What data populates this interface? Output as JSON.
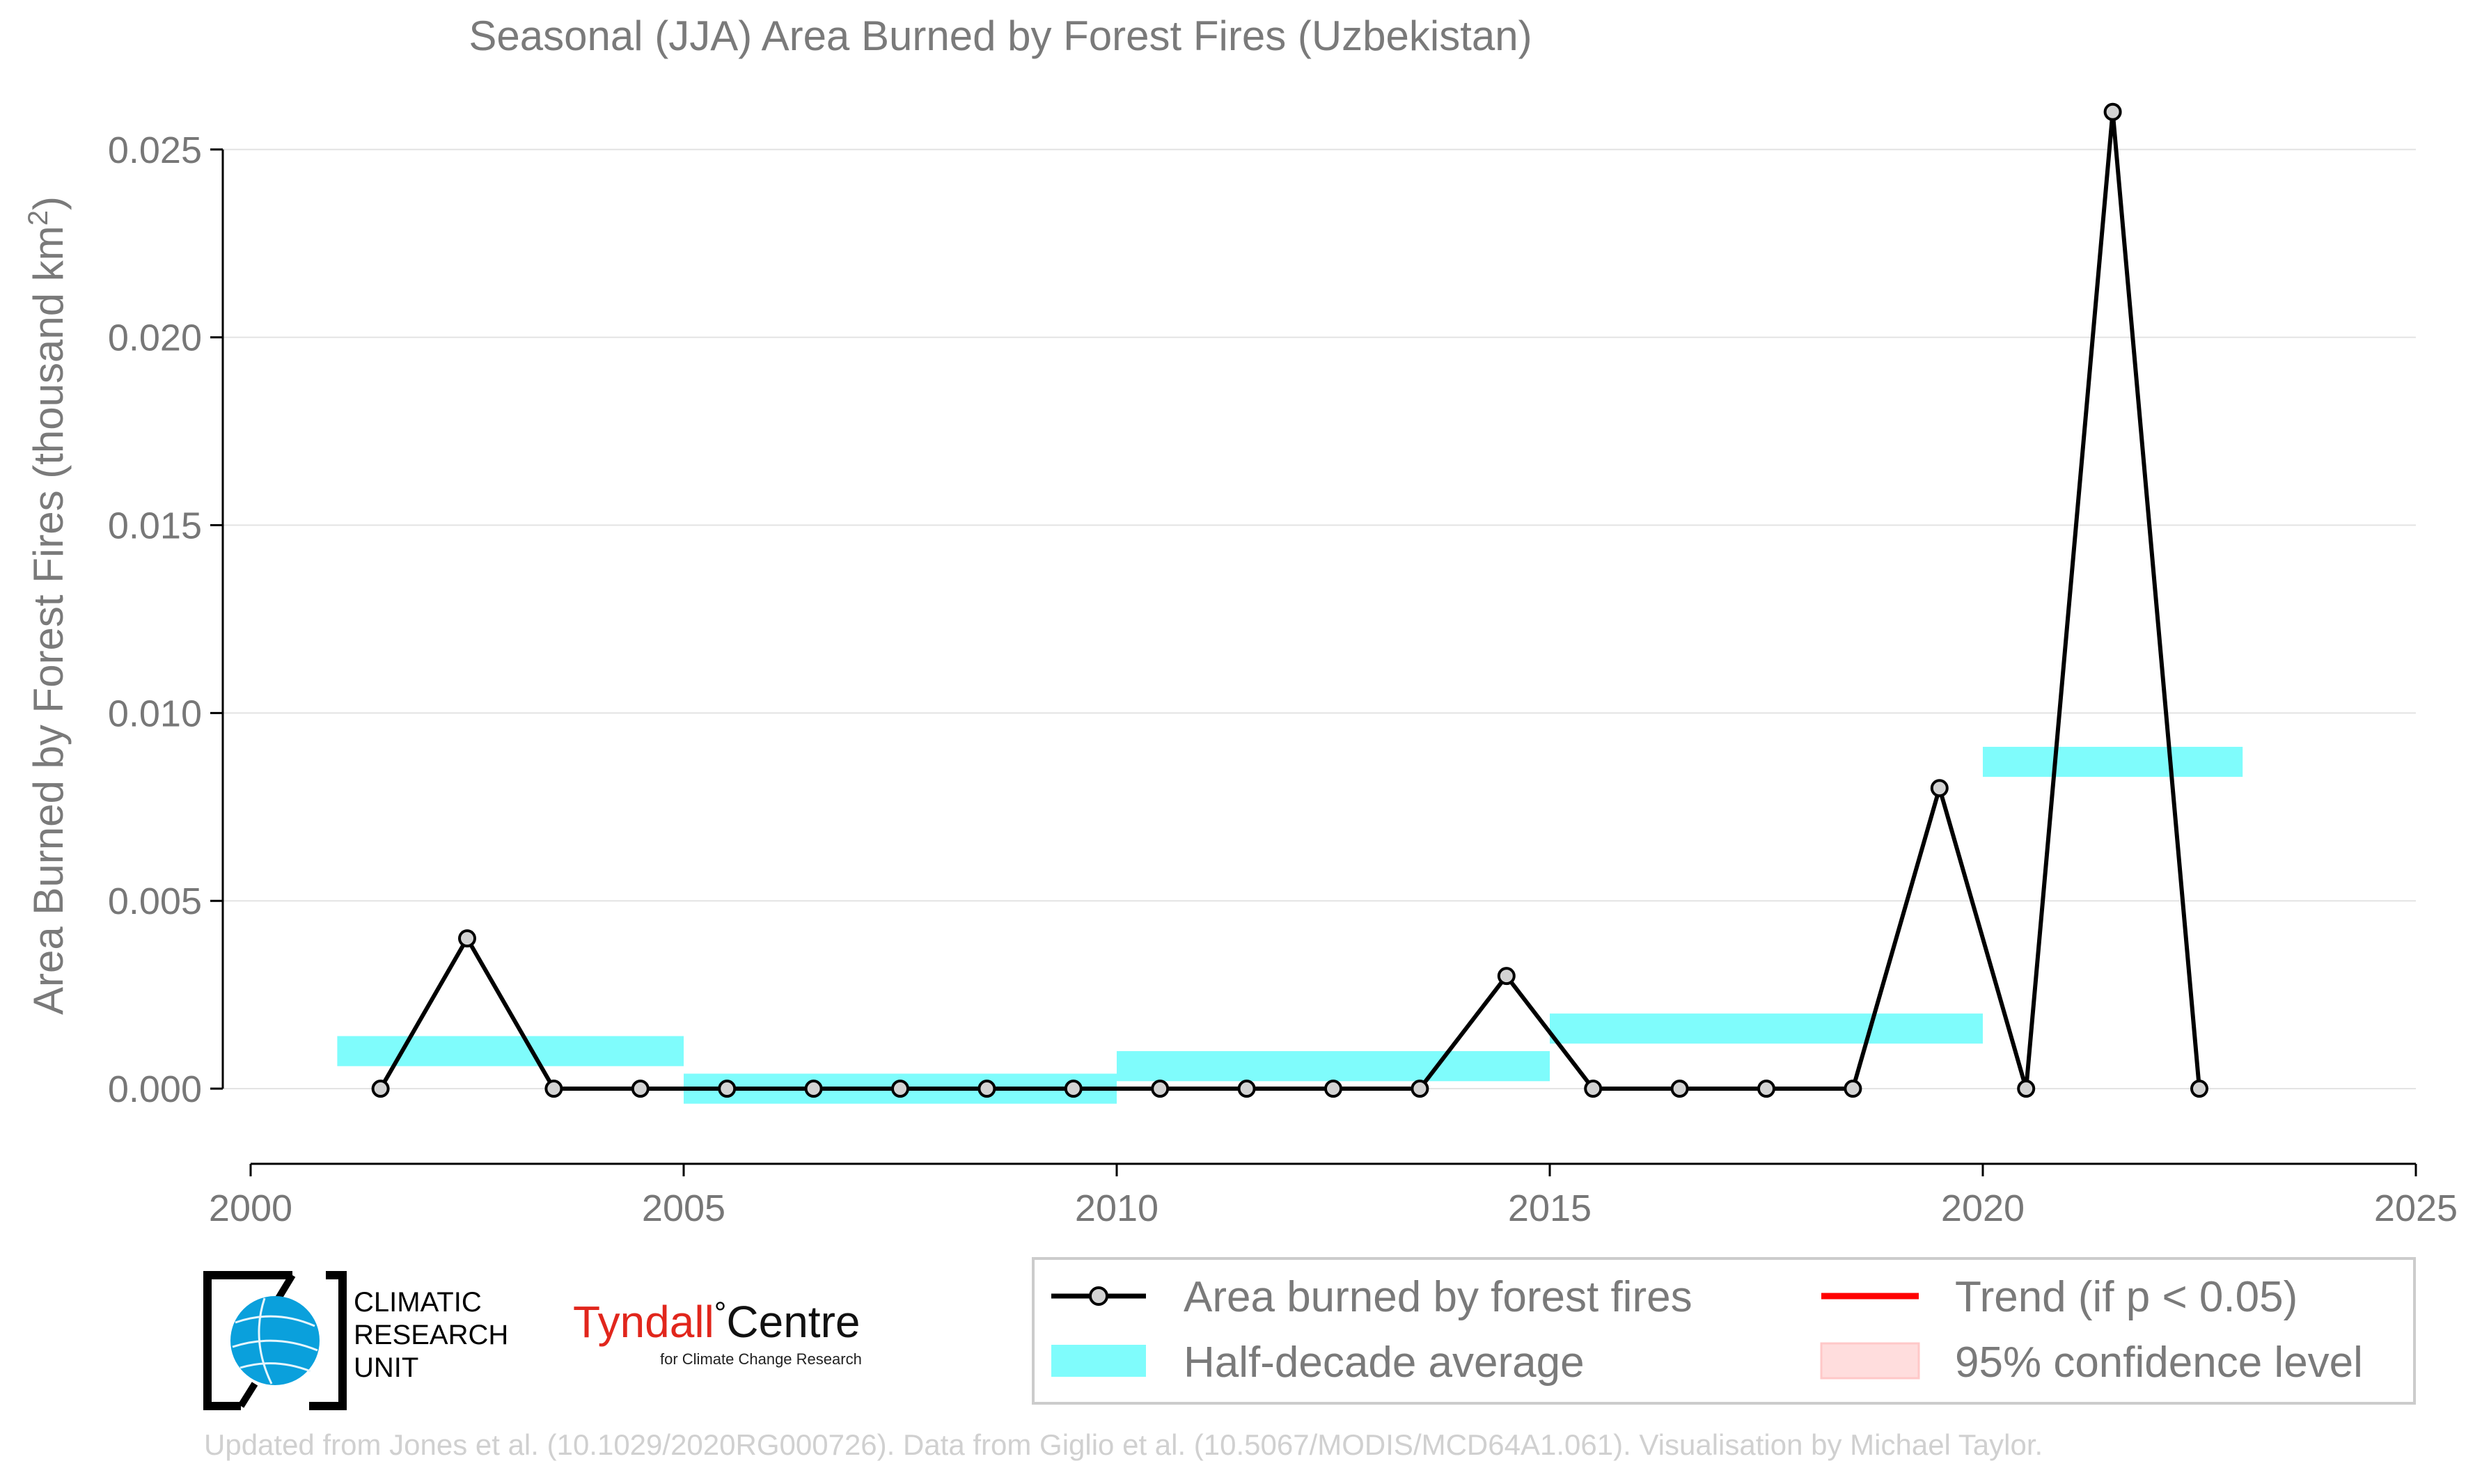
{
  "chart_data": {
    "type": "line",
    "title": "Seasonal (JJA) Area Burned by Forest Fires (Uzbekistan)",
    "ylabel_main": "Area Burned by Forest Fires (thousand km",
    "ylabel_sup": "2",
    "ylabel_end": ")",
    "xlabel": "",
    "xlim": [
      2000,
      2025
    ],
    "ylim": [
      -0.002,
      0.0262
    ],
    "x_ticks": [
      2000,
      2005,
      2010,
      2015,
      2020,
      2025
    ],
    "y_ticks": [
      0.0,
      0.005,
      0.01,
      0.015,
      0.02,
      0.025
    ],
    "y_tick_labels": [
      "0.000",
      "0.005",
      "0.010",
      "0.015",
      "0.020",
      "0.025"
    ],
    "grid": "horizontal",
    "series": [
      {
        "name": "Area burned by forest fires",
        "x": [
          2001.5,
          2002.5,
          2003.5,
          2004.5,
          2005.5,
          2006.5,
          2007.5,
          2008.5,
          2009.5,
          2010.5,
          2011.5,
          2012.5,
          2013.5,
          2014.5,
          2015.5,
          2016.5,
          2017.5,
          2018.5,
          2019.5,
          2020.5,
          2021.5,
          2022.5
        ],
        "y": [
          0.0,
          0.004,
          0.0,
          0.0,
          0.0,
          0.0,
          0.0,
          0.0,
          0.0,
          0.0,
          0.0,
          0.0,
          0.0,
          0.003,
          0.0,
          0.0,
          0.0,
          0.0,
          0.008,
          0.0,
          0.026,
          0.0
        ],
        "color": "#000000",
        "marker_fill": "#d3d3d3"
      }
    ],
    "half_decade_average": {
      "name": "Half-decade average",
      "color": "#7ffcfc",
      "segments": [
        {
          "x0": 2001,
          "x1": 2005,
          "y": 0.001
        },
        {
          "x0": 2005,
          "x1": 2010,
          "y": 0.0
        },
        {
          "x0": 2010,
          "x1": 2015,
          "y": 0.0006
        },
        {
          "x0": 2015,
          "x1": 2020,
          "y": 0.0016
        },
        {
          "x0": 2020,
          "x1": 2023,
          "y": 0.0087
        }
      ]
    },
    "legend": {
      "placement": "bottom-right",
      "entries": [
        {
          "label": "Area burned by forest fires",
          "kind": "line-marker",
          "color": "#000000"
        },
        {
          "label": "Trend (if p < 0.05)",
          "kind": "line",
          "color": "#ff0000"
        },
        {
          "label": "Half-decade average",
          "kind": "band",
          "color": "#7ffcfc"
        },
        {
          "label": "95% confidence level",
          "kind": "patch",
          "color": "#ffdddd"
        }
      ]
    }
  },
  "logos": {
    "cru_lines": [
      "CLIMATIC",
      "RESEARCH",
      "UNIT"
    ],
    "tyndall_name": "Tyndall",
    "tyndall_degree": "°",
    "tyndall_centre": "Centre",
    "tyndall_sub": "for Climate Change Research"
  },
  "footer": "Updated from Jones et al. (10.1029/2020RG000726). Data from Giglio et al. (10.5067/MODIS/MCD64A1.061). Visualisation by Michael Taylor."
}
